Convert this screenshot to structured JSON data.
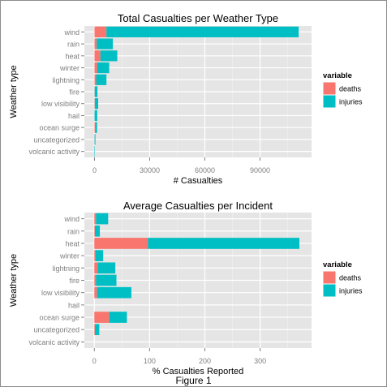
{
  "figure": {
    "caption": "Figure 1"
  },
  "chart_data": [
    {
      "type": "bar",
      "stacked": true,
      "orientation": "horizontal",
      "title": "Total Casualties per Weather Type",
      "xlabel": "# Casualties",
      "ylabel": "Weather type",
      "categories": [
        "wind",
        "rain",
        "heat",
        "winter",
        "lightning",
        "fire",
        "low visibility",
        "hail",
        "ocean surge",
        "uncategorized",
        "volcanic activity"
      ],
      "series": [
        {
          "name": "deaths",
          "color": "#F8766D",
          "values": [
            6500,
            1200,
            3200,
            1500,
            900,
            100,
            150,
            20,
            300,
            50,
            3
          ]
        },
        {
          "name": "injuries",
          "color": "#00BFC4",
          "values": [
            104500,
            8800,
            9200,
            6500,
            5600,
            1500,
            1850,
            1480,
            1100,
            450,
            30
          ]
        }
      ],
      "xticks": [
        0,
        30000,
        60000,
        90000
      ],
      "xtick_labels": [
        "0",
        "30000",
        "60000",
        "90000"
      ],
      "xlim": [
        -5500,
        118000
      ],
      "legend": {
        "title": "variable",
        "position": "right"
      },
      "grid": true
    },
    {
      "type": "bar",
      "stacked": true,
      "orientation": "horizontal",
      "title": "Average Casualties per Incident",
      "xlabel": "% Casualties Reported",
      "ylabel": "Weather type",
      "categories": [
        "wind",
        "rain",
        "heat",
        "winter",
        "lightning",
        "fire",
        "low visibility",
        "hail",
        "ocean surge",
        "uncategorized",
        "volcanic activity"
      ],
      "series": [
        {
          "name": "deaths",
          "color": "#F8766D",
          "values": [
            3,
            1,
            97,
            2,
            6,
            3,
            5,
            0,
            27,
            1,
            0
          ]
        },
        {
          "name": "injuries",
          "color": "#00BFC4",
          "values": [
            22,
            9,
            274,
            14,
            32,
            37,
            62,
            0,
            32,
            8,
            0
          ]
        }
      ],
      "xticks": [
        0,
        100,
        200,
        300
      ],
      "xtick_labels": [
        "0",
        "100",
        "200",
        "300"
      ],
      "xlim": [
        -18,
        393
      ],
      "legend": {
        "title": "variable",
        "position": "right"
      },
      "grid": true
    }
  ]
}
